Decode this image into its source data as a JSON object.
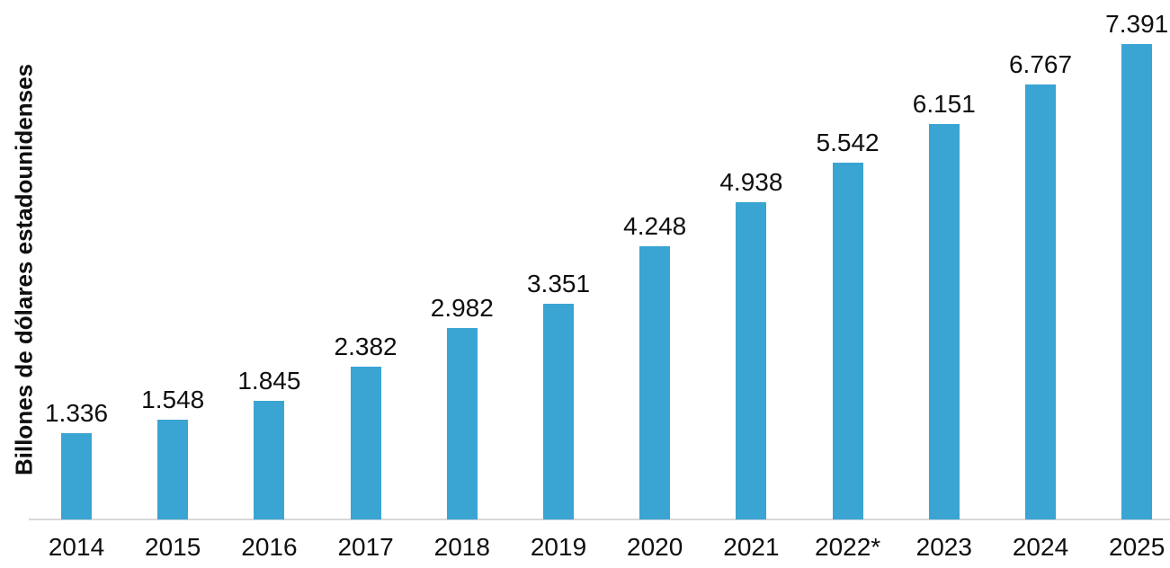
{
  "chart_data": {
    "type": "bar",
    "title": "",
    "xlabel": "",
    "ylabel": "Billones de dólares estadounidenses",
    "categories": [
      "2014",
      "2015",
      "2016",
      "2017",
      "2018",
      "2019",
      "2020",
      "2021",
      "2022*",
      "2023",
      "2024",
      "2025"
    ],
    "values": [
      1.336,
      1.548,
      1.845,
      2.382,
      2.982,
      3.351,
      4.248,
      4.938,
      5.542,
      6.151,
      6.767,
      7.391
    ],
    "value_labels": [
      "1.336",
      "1.548",
      "1.845",
      "2.382",
      "2.982",
      "3.351",
      "4.248",
      "4.938",
      "5.542",
      "6.151",
      "6.767",
      "7.391"
    ],
    "ylim": [
      0,
      8.08
    ],
    "grid": false,
    "legend": "none",
    "bar_color": "#3aa4d3",
    "axis_line_color": "#d8d8d8",
    "text_color": "#0f0f0f"
  }
}
